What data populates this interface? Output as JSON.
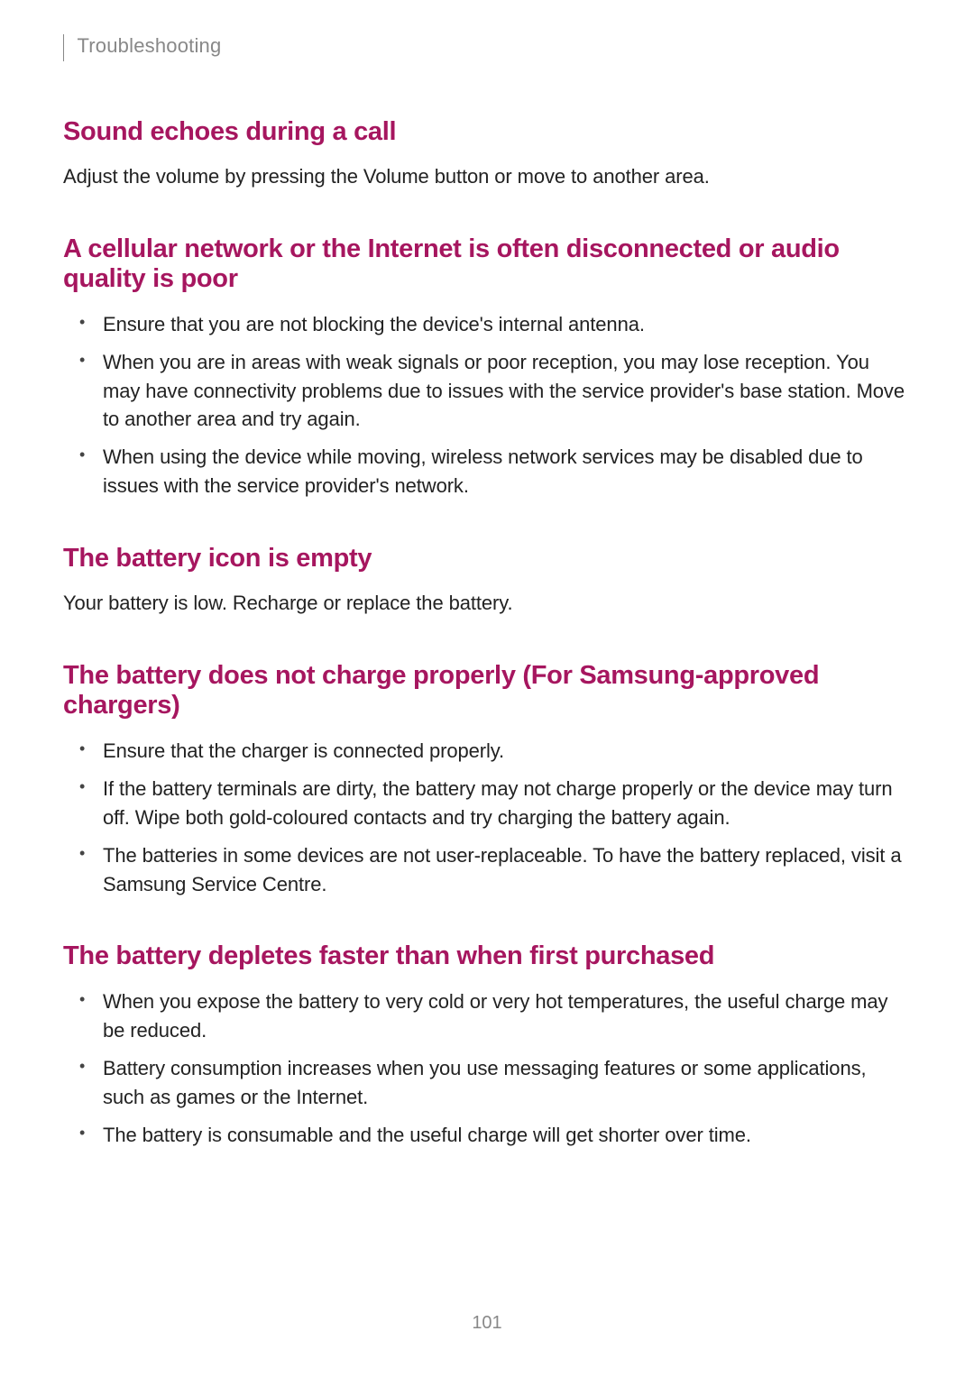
{
  "header": {
    "breadcrumb": "Troubleshooting"
  },
  "sections": {
    "section1": {
      "heading": "Sound echoes during a call",
      "body": "Adjust the volume by pressing the Volume button or move to another area."
    },
    "section2": {
      "heading": "A cellular network or the Internet is often disconnected or audio quality is poor",
      "bullets": {
        "b1": "Ensure that you are not blocking the device's internal antenna.",
        "b2": "When you are in areas with weak signals or poor reception, you may lose reception. You may have connectivity problems due to issues with the service provider's base station. Move to another area and try again.",
        "b3": "When using the device while moving, wireless network services may be disabled due to issues with the service provider's network."
      }
    },
    "section3": {
      "heading": "The battery icon is empty",
      "body": "Your battery is low. Recharge or replace the battery."
    },
    "section4": {
      "heading": "The battery does not charge properly (For Samsung-approved chargers)",
      "bullets": {
        "b1": "Ensure that the charger is connected properly.",
        "b2": "If the battery terminals are dirty, the battery may not charge properly or the device may turn off. Wipe both gold-coloured contacts and try charging the battery again.",
        "b3": "The batteries in some devices are not user-replaceable. To have the battery replaced, visit a Samsung Service Centre."
      }
    },
    "section5": {
      "heading": "The battery depletes faster than when first purchased",
      "bullets": {
        "b1": "When you expose the battery to very cold or very hot temperatures, the useful charge may be reduced.",
        "b2": "Battery consumption increases when you use messaging features or some applications, such as games or the Internet.",
        "b3": "The battery is consumable and the useful charge will get shorter over time."
      }
    }
  },
  "pageNumber": "101",
  "colors": {
    "heading_color": "#a6165f",
    "body_text_color": "#222222",
    "breadcrumb_color": "#888888",
    "page_number_color": "#888888",
    "background_color": "#ffffff"
  },
  "typography": {
    "heading_fontsize": 29,
    "body_fontsize": 22,
    "breadcrumb_fontsize": 22,
    "page_number_fontsize": 20,
    "heading_weight": 700,
    "body_weight": 400
  }
}
